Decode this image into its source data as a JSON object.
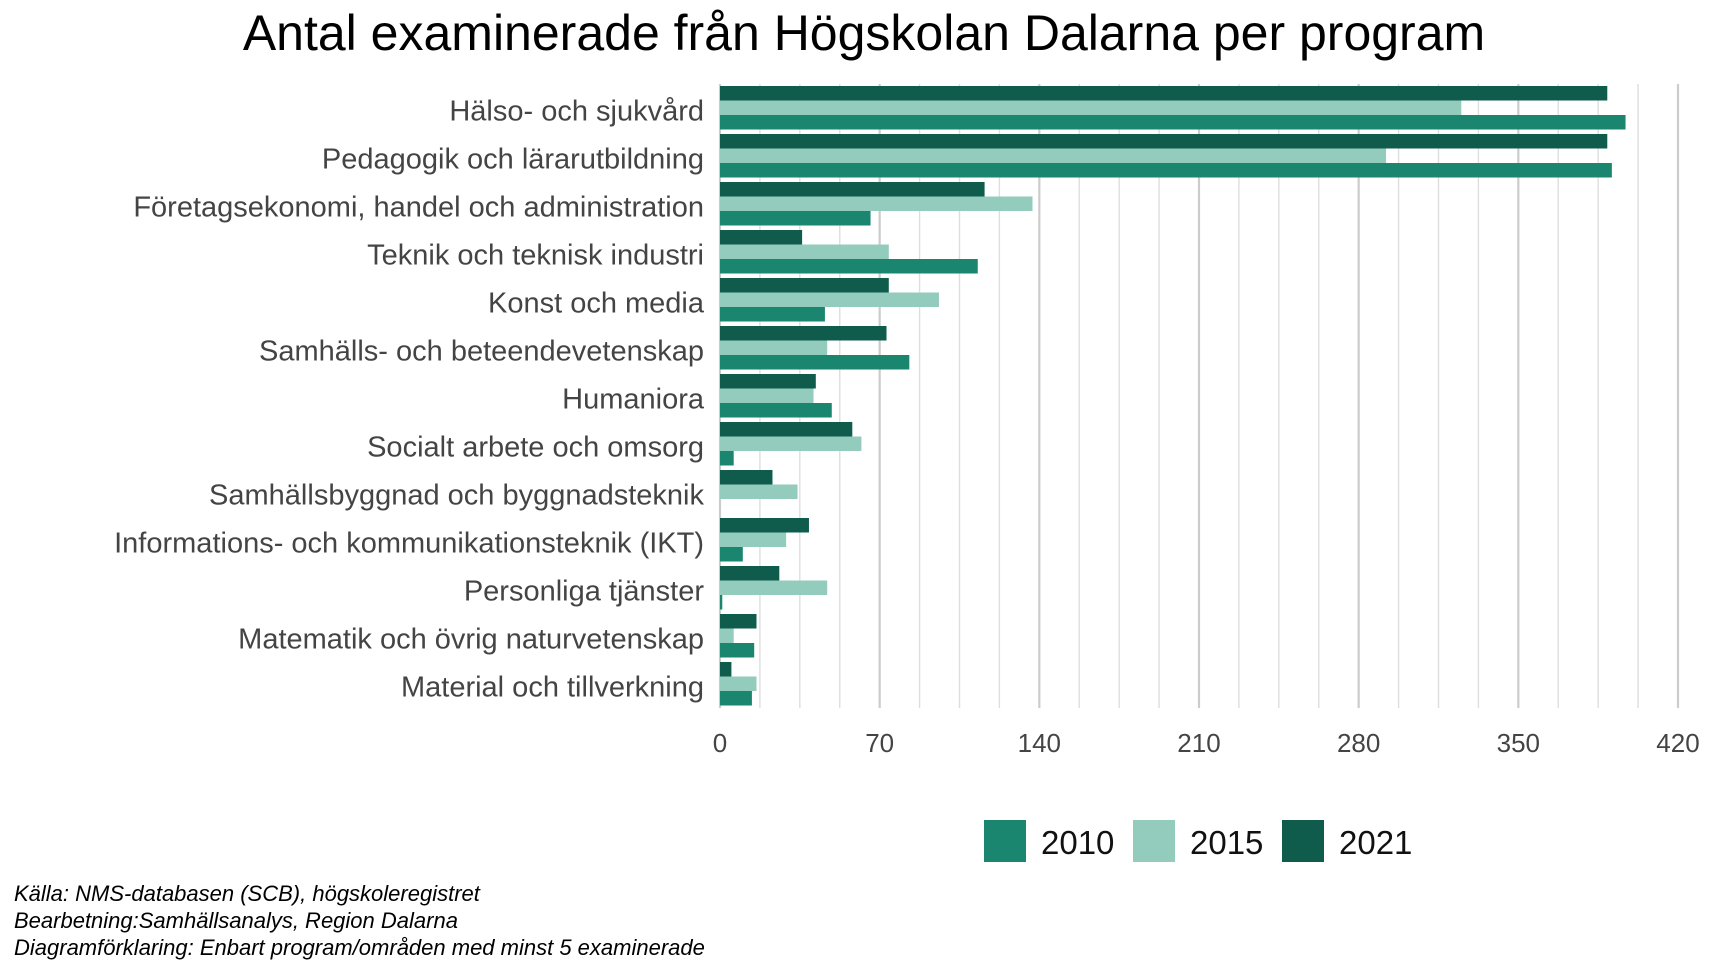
{
  "chart_data": {
    "type": "bar",
    "orientation": "horizontal",
    "title": "Antal examinerade från Högskolan Dalarna per program",
    "xlabel": "",
    "ylabel": "",
    "xlim": [
      0,
      420
    ],
    "ticks": [
      0,
      70,
      140,
      210,
      280,
      350,
      420
    ],
    "grid": true,
    "legend_position": "bottom",
    "categories": [
      "Hälso- och sjukvård",
      "Pedagogik och lärarutbildning",
      "Företagsekonomi, handel och administration",
      "Teknik och teknisk industri",
      "Konst och media",
      "Samhälls- och beteendevetenskap",
      "Humaniora",
      "Socialt arbete och omsorg",
      "Samhällsbyggnad och byggnadsteknik",
      "Informations- och kommunikationsteknik (IKT)",
      "Personliga tjänster",
      "Matematik och övrig naturvetenskap",
      "Material och tillverkning"
    ],
    "series": [
      {
        "name": "2021",
        "color": "#0f5c4d",
        "values": [
          389,
          389,
          116,
          36,
          74,
          73,
          42,
          58,
          23,
          39,
          26,
          16,
          5
        ]
      },
      {
        "name": "2015",
        "color": "#93ccbd",
        "values": [
          325,
          292,
          137,
          74,
          96,
          47,
          41,
          62,
          34,
          29,
          47,
          6,
          16
        ]
      },
      {
        "name": "2010",
        "color": "#1b8670",
        "values": [
          397,
          391,
          66,
          113,
          46,
          83,
          49,
          6,
          0,
          10,
          1,
          15,
          14
        ]
      }
    ],
    "legend_order": [
      "2010",
      "2015",
      "2021"
    ]
  },
  "footer": {
    "source": "Källa: NMS-databasen (SCB), högskoleregistret",
    "processing": "Bearbetning:Samhällsanalys, Region Dalarna",
    "explanation": "Diagramförklaring: Enbart program/områden med minst 5 examinerade"
  }
}
